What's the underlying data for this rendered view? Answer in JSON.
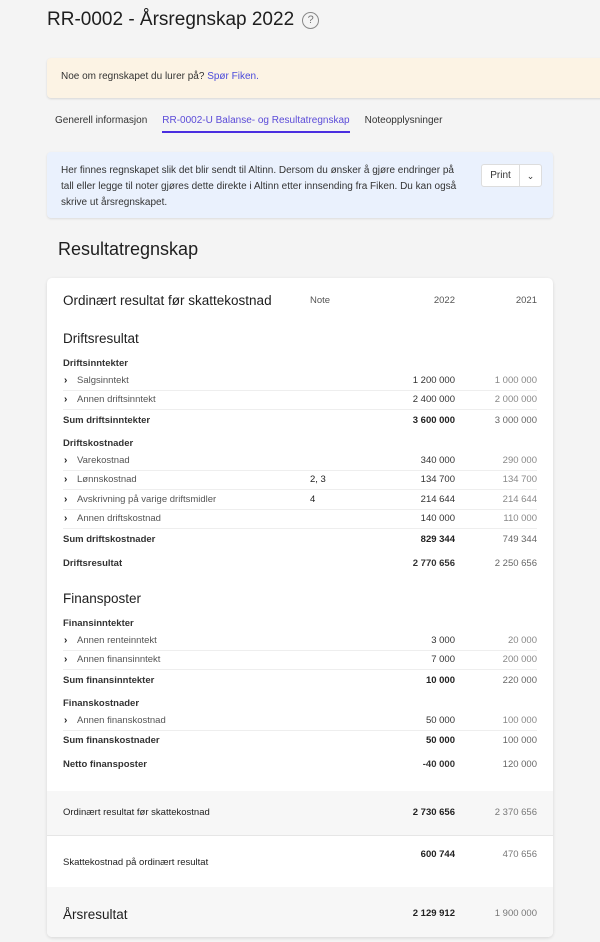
{
  "header": {
    "title": "RR-0002 - Årsregnskap 2022",
    "help_icon": "question-circle-icon"
  },
  "banner": {
    "text": "Noe om regnskapet du lurer på? ",
    "link": "Spør Fiken."
  },
  "tabs": [
    {
      "label": "Generell informasjon",
      "active": false
    },
    {
      "label": "RR-0002-U Balanse- og Resultatregnskap",
      "active": true
    },
    {
      "label": "Noteopplysninger",
      "active": false
    }
  ],
  "info": {
    "text": "Her finnes regnskapet slik det blir sendt til Altinn. Dersom du ønsker å gjøre endringer på tall eller legge til noter gjøres dette direkte i Altinn etter innsending fra Fiken. Du kan også skrive ut årsregnskapet.",
    "print_label": "Print",
    "dropdown_icon": "chevron-down-icon"
  },
  "section_title": "Resultatregnskap",
  "table": {
    "title": "Ordinært resultat før skattekostnad",
    "col_note": "Note",
    "col_2022": "2022",
    "col_2021": "2021",
    "sections": [
      {
        "title": "Driftsresultat",
        "groups": [
          {
            "title": "Driftsinntekter",
            "items": [
              {
                "label": "Salgsinntekt",
                "note": "",
                "v2022": "1 200 000",
                "v2021": "1 000 000"
              },
              {
                "label": "Annen driftsinntekt",
                "note": "",
                "v2022": "2 400 000",
                "v2021": "2 000 000"
              }
            ],
            "sum": {
              "label": "Sum driftsinntekter",
              "v2022": "3 600 000",
              "v2021": "3 000 000"
            }
          },
          {
            "title": "Driftskostnader",
            "items": [
              {
                "label": "Varekostnad",
                "note": "",
                "v2022": "340 000",
                "v2021": "290 000"
              },
              {
                "label": "Lønnskostnad",
                "note": "2, 3",
                "v2022": "134 700",
                "v2021": "134 700"
              },
              {
                "label": "Avskrivning på varige driftsmidler",
                "note": "4",
                "v2022": "214 644",
                "v2021": "214 644"
              },
              {
                "label": "Annen driftskostnad",
                "note": "",
                "v2022": "140 000",
                "v2021": "110 000"
              }
            ],
            "sum": {
              "label": "Sum driftskostnader",
              "v2022": "829 344",
              "v2021": "749 344"
            }
          }
        ],
        "total": {
          "label": "Driftsresultat",
          "v2022": "2 770 656",
          "v2021": "2 250 656"
        }
      },
      {
        "title": "Finansposter",
        "groups": [
          {
            "title": "Finansinntekter",
            "items": [
              {
                "label": "Annen renteinntekt",
                "note": "",
                "v2022": "3 000",
                "v2021": "20 000"
              },
              {
                "label": "Annen finansinntekt",
                "note": "",
                "v2022": "7 000",
                "v2021": "200 000"
              }
            ],
            "sum": {
              "label": "Sum finansinntekter",
              "v2022": "10 000",
              "v2021": "220 000"
            }
          },
          {
            "title": "Finanskostnader",
            "items": [
              {
                "label": "Annen finanskostnad",
                "note": "",
                "v2022": "50 000",
                "v2021": "100 000"
              }
            ],
            "sum": {
              "label": "Sum finanskostnader",
              "v2022": "50 000",
              "v2021": "100 000"
            }
          }
        ],
        "total": {
          "label": "Netto finansposter",
          "v2022": "-40 000",
          "v2021": "120 000"
        }
      }
    ],
    "summary": [
      {
        "label": "Ordinært resultat før skattekostnad",
        "v2022": "2 730 656",
        "v2021": "2 370 656"
      },
      {
        "label": "Skattekostnad på ordinært resultat",
        "v2022": "600 744",
        "v2021": "470 656"
      },
      {
        "label": "Årsresultat",
        "v2022": "2 129 912",
        "v2021": "1 900 000"
      }
    ]
  }
}
